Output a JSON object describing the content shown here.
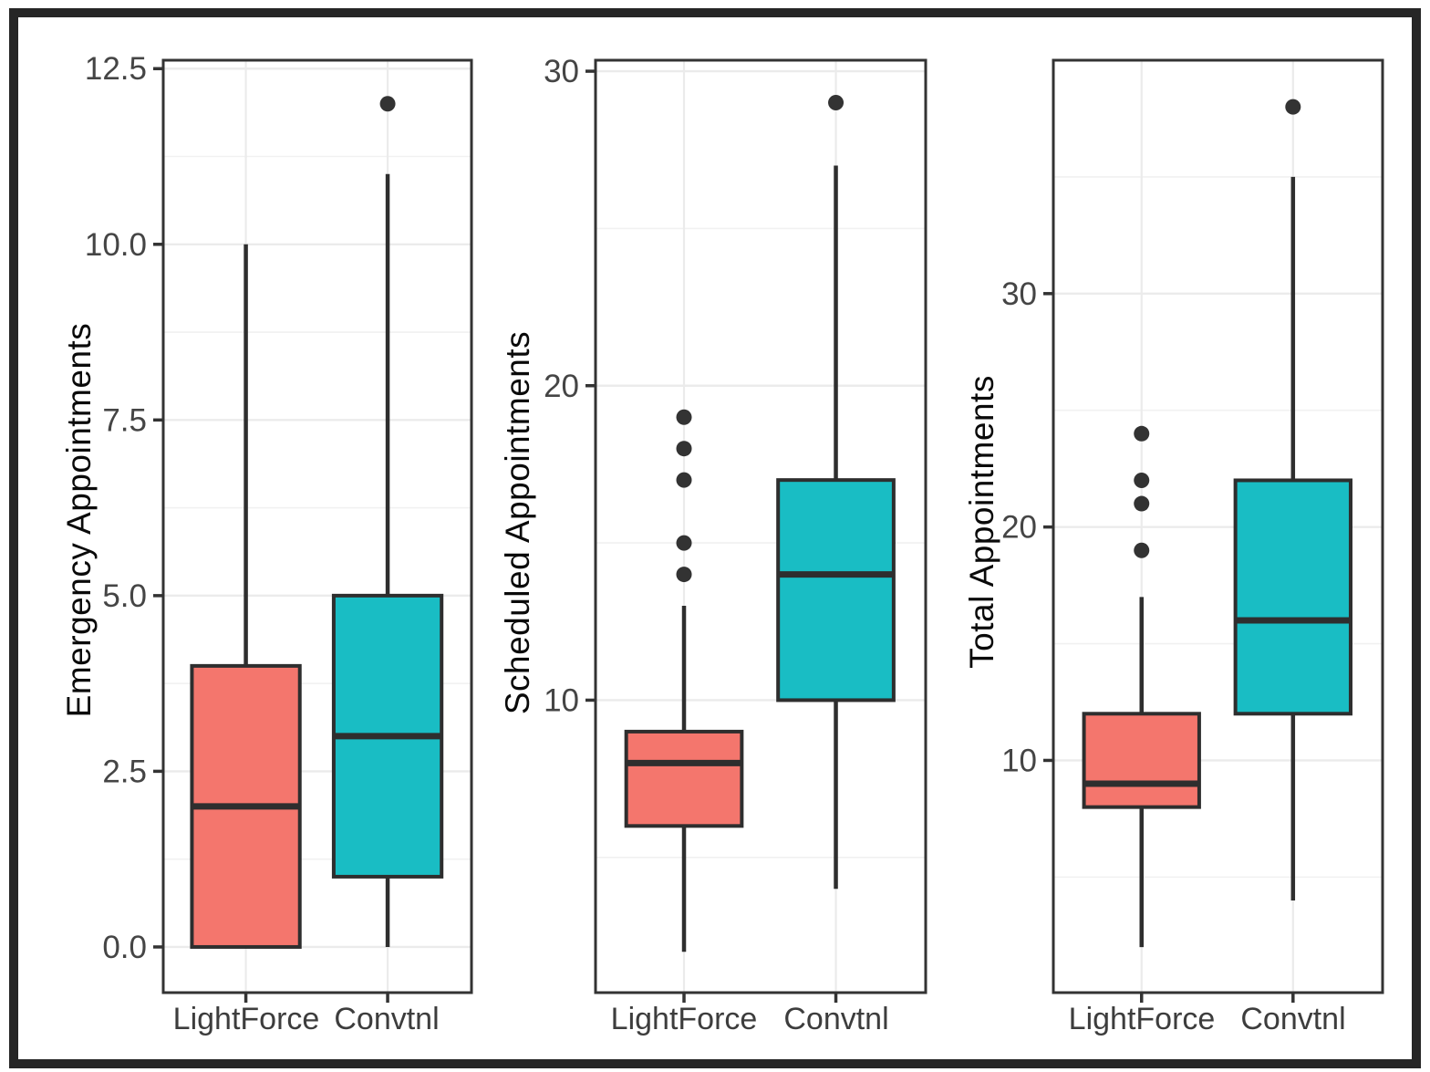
{
  "colors": {
    "lightforce": "#F4766D",
    "convtnl": "#19BDC4",
    "box_outline": "#2E2E2E",
    "median_line": "#2E2E2E",
    "outlier_dot": "#333333",
    "gridline_major": "#EBEBEB",
    "gridline_minor": "#F1F1F1",
    "panel_border": "#333333",
    "tick_mark": "#333333",
    "tick_label": "#454545",
    "axis_title": "#0A0A0A",
    "frame": "#262626",
    "background": "#FFFFFF"
  },
  "chart_data": [
    {
      "type": "boxplot",
      "title": "",
      "ylabel": "Emergency Appointments",
      "xlabel": "",
      "categories": [
        "LightForce",
        "Convtnl"
      ],
      "yticks": [
        "0.0",
        "2.5",
        "5.0",
        "7.5",
        "10.0",
        "12.5"
      ],
      "ytick_values": [
        0,
        2.5,
        5,
        7.5,
        10,
        12.5
      ],
      "ylim": [
        -0.65,
        12.62
      ],
      "grid": true,
      "legend": "none",
      "series": [
        {
          "name": "LightForce",
          "color_key": "lightforce",
          "whisker_low": 0,
          "q1": 0,
          "median": 2,
          "q3": 4,
          "whisker_high": 10,
          "outliers": []
        },
        {
          "name": "Convtnl",
          "color_key": "convtnl",
          "whisker_low": 0,
          "q1": 1,
          "median": 3,
          "q3": 5,
          "whisker_high": 11,
          "outliers": [
            12
          ]
        }
      ]
    },
    {
      "type": "boxplot",
      "title": "",
      "ylabel": "Scheduled Appointments",
      "xlabel": "",
      "categories": [
        "LightForce",
        "Convtnl"
      ],
      "yticks": [
        "10",
        "20",
        "30"
      ],
      "ytick_values": [
        10,
        20,
        30
      ],
      "ylim": [
        0.7,
        30.35
      ],
      "grid": true,
      "legend": "none",
      "series": [
        {
          "name": "LightForce",
          "color_key": "lightforce",
          "whisker_low": 2,
          "q1": 6,
          "median": 8,
          "q3": 9,
          "whisker_high": 13,
          "outliers": [
            14,
            15,
            17,
            18,
            19
          ]
        },
        {
          "name": "Convtnl",
          "color_key": "convtnl",
          "whisker_low": 4,
          "q1": 10,
          "median": 14,
          "q3": 17,
          "whisker_high": 27,
          "outliers": [
            29
          ]
        }
      ]
    },
    {
      "type": "boxplot",
      "title": "",
      "ylabel": "Total Appointments",
      "xlabel": "",
      "categories": [
        "LightForce",
        "Convtnl"
      ],
      "yticks": [
        "10",
        "20",
        "30"
      ],
      "ytick_values": [
        10,
        20,
        30
      ],
      "ylim": [
        0.05,
        40.0
      ],
      "grid": true,
      "legend": "none",
      "series": [
        {
          "name": "LightForce",
          "color_key": "lightforce",
          "whisker_low": 2,
          "q1": 8,
          "median": 9,
          "q3": 12,
          "whisker_high": 17,
          "outliers": [
            19,
            21,
            22,
            24
          ]
        },
        {
          "name": "Convtnl",
          "color_key": "convtnl",
          "whisker_low": 4,
          "q1": 12,
          "median": 16,
          "q3": 22,
          "whisker_high": 35,
          "outliers": [
            38
          ]
        }
      ]
    }
  ]
}
